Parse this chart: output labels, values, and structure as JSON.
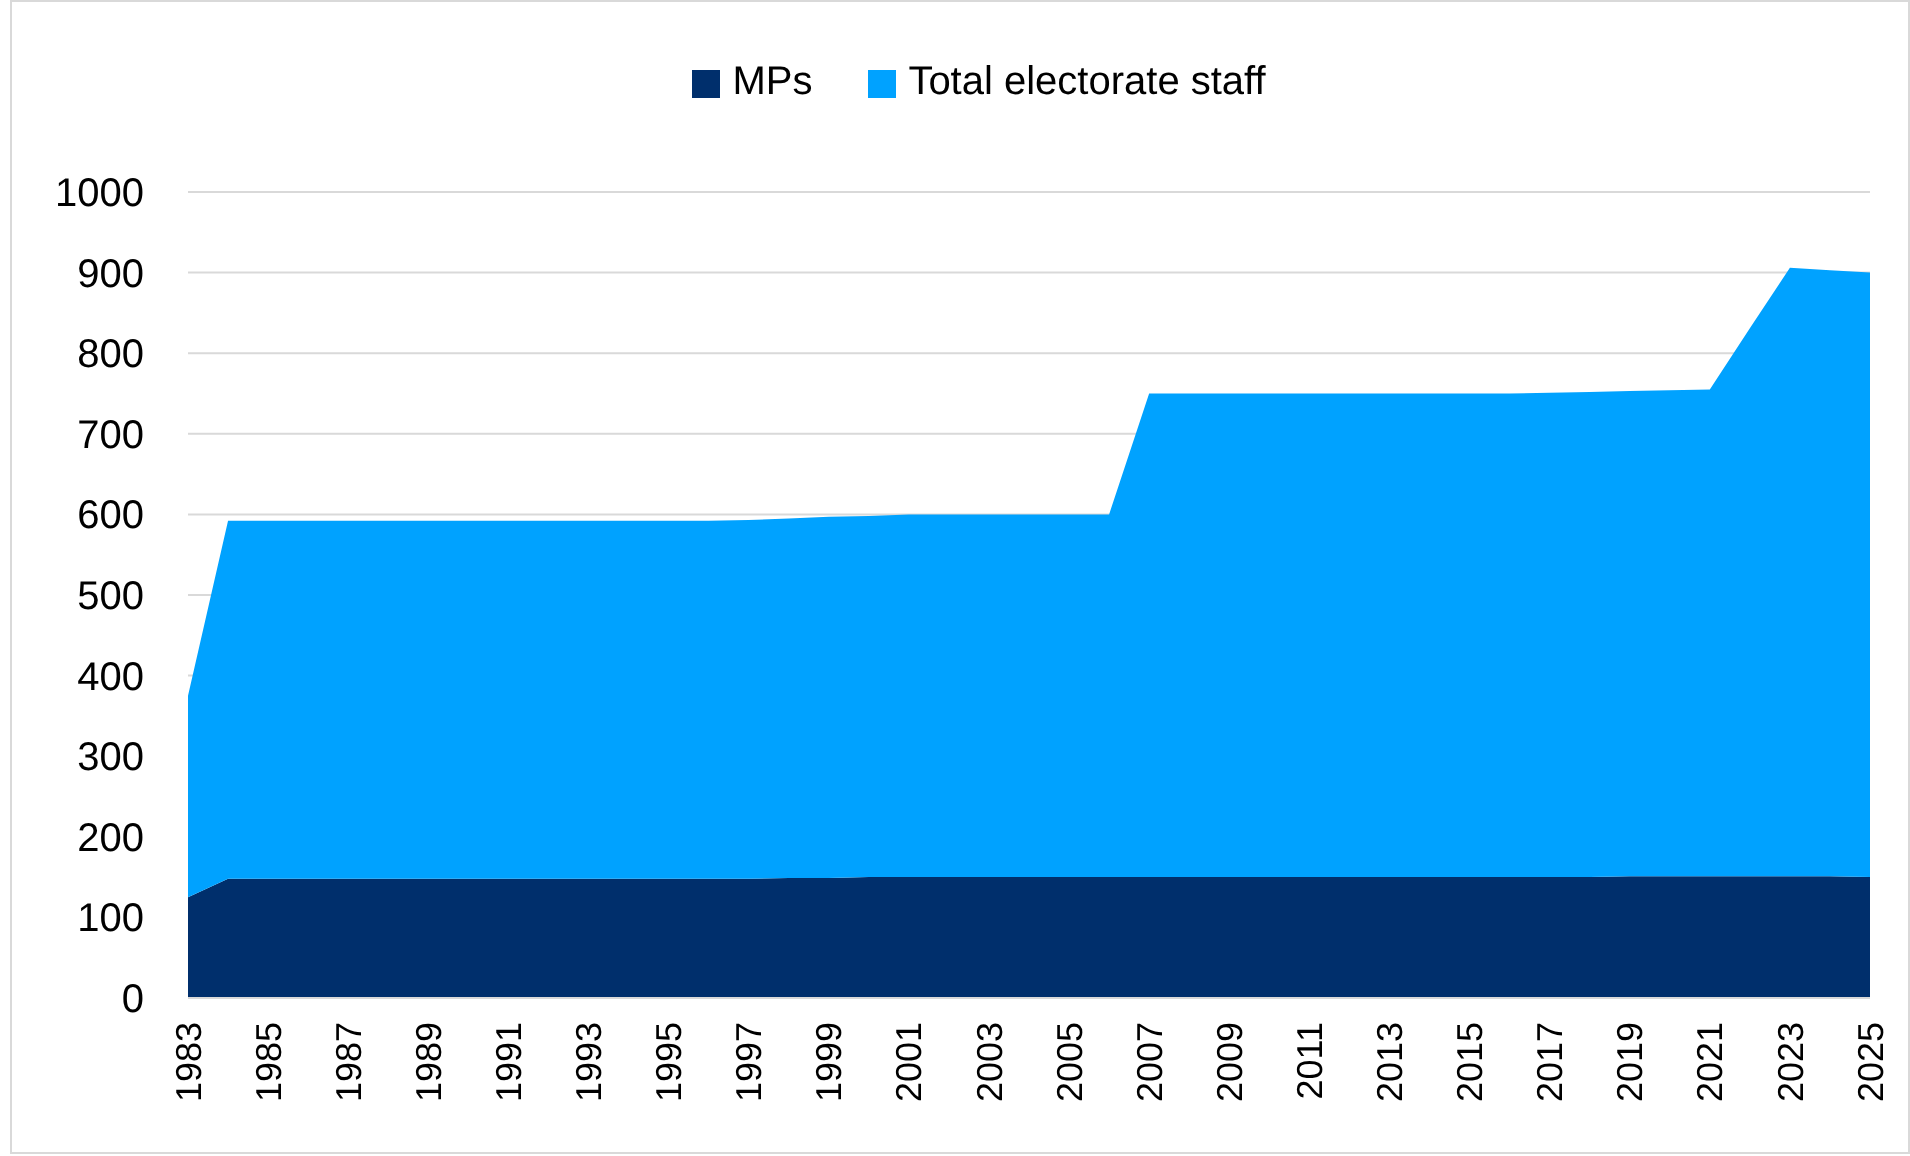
{
  "chart_data": {
    "type": "area",
    "stacked": true,
    "x": [
      1983,
      1984,
      1985,
      1986,
      1987,
      1988,
      1989,
      1990,
      1991,
      1992,
      1993,
      1994,
      1995,
      1996,
      1997,
      1998,
      1999,
      2000,
      2001,
      2002,
      2003,
      2004,
      2005,
      2006,
      2007,
      2008,
      2009,
      2010,
      2011,
      2012,
      2013,
      2014,
      2015,
      2016,
      2017,
      2018,
      2019,
      2020,
      2021,
      2022,
      2023,
      2024,
      2025
    ],
    "series": [
      {
        "name": "MPs",
        "color": "#002f6c",
        "values": [
          125,
          148,
          148,
          148,
          148,
          148,
          148,
          148,
          148,
          148,
          148,
          148,
          148,
          148,
          148,
          149,
          149,
          150,
          150,
          150,
          150,
          150,
          150,
          150,
          150,
          150,
          150,
          150,
          150,
          150,
          150,
          150,
          150,
          150,
          150,
          150,
          151,
          151,
          151,
          151,
          151,
          151,
          150
        ]
      },
      {
        "name": "Total electorate staff",
        "color": "#00a2ff",
        "values": [
          250,
          444,
          444,
          444,
          444,
          444,
          444,
          444,
          444,
          444,
          444,
          444,
          444,
          444,
          445,
          446,
          448,
          448,
          450,
          450,
          450,
          450,
          450,
          450,
          600,
          600,
          600,
          600,
          600,
          600,
          600,
          600,
          600,
          600,
          601,
          602,
          602,
          603,
          604,
          680,
          755,
          752,
          750
        ]
      }
    ],
    "xlim": [
      1983,
      2025
    ],
    "xticks": [
      1983,
      1985,
      1987,
      1989,
      1991,
      1993,
      1995,
      1997,
      1999,
      2001,
      2003,
      2005,
      2007,
      2009,
      2011,
      2013,
      2015,
      2017,
      2019,
      2021,
      2023,
      2025
    ],
    "ylim": [
      0,
      1000
    ],
    "yticks": [
      0,
      100,
      200,
      300,
      400,
      500,
      600,
      700,
      800,
      900,
      1000
    ],
    "grid": "y",
    "legend": "top"
  }
}
